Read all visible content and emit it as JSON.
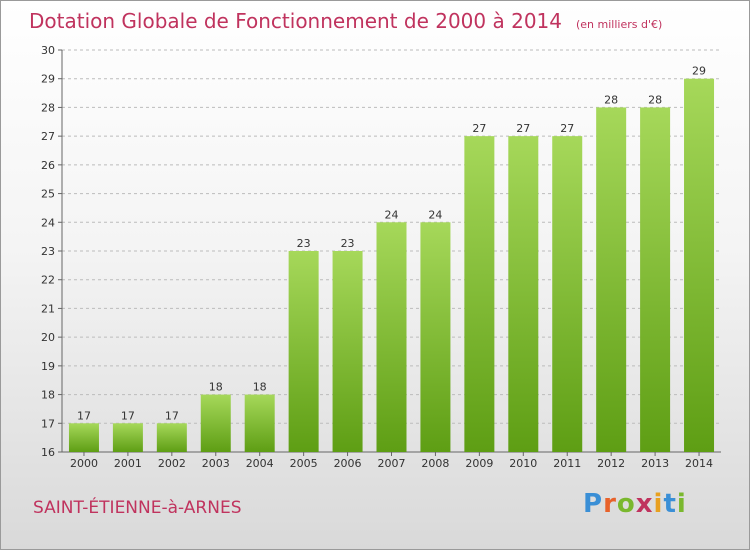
{
  "header": {
    "title": "Dotation Globale de Fonctionnement de 2000 à 2014",
    "unit_note": "(en milliers d'€)"
  },
  "footer": {
    "commune": "SAINT-ÉTIENNE-à-ARNES",
    "brand": "Proxiti"
  },
  "brand_colors": [
    "#3a8fd6",
    "#e8622a",
    "#7ab82e",
    "#c0335e",
    "#e8a020",
    "#3a8fd6",
    "#7ab82e"
  ],
  "colors": {
    "bar_top": "#a6d85a",
    "bar_bottom": "#5e9e14",
    "accent": "#c0335e",
    "grid": "#bcbcbc",
    "text": "#333333"
  },
  "chart_data": {
    "type": "bar",
    "categories": [
      "2000",
      "2001",
      "2002",
      "2003",
      "2004",
      "2005",
      "2006",
      "2007",
      "2008",
      "2009",
      "2010",
      "2011",
      "2012",
      "2013",
      "2014"
    ],
    "values": [
      17,
      17,
      17,
      18,
      18,
      23,
      23,
      24,
      24,
      27,
      27,
      27,
      28,
      28,
      29
    ],
    "title": "Dotation Globale de Fonctionnement de 2000 à 2014",
    "ylim": [
      16,
      30
    ],
    "yticks": [
      16,
      17,
      18,
      19,
      20,
      21,
      22,
      23,
      24,
      25,
      26,
      27,
      28,
      29,
      30
    ],
    "grid": true,
    "data_labels": true
  }
}
